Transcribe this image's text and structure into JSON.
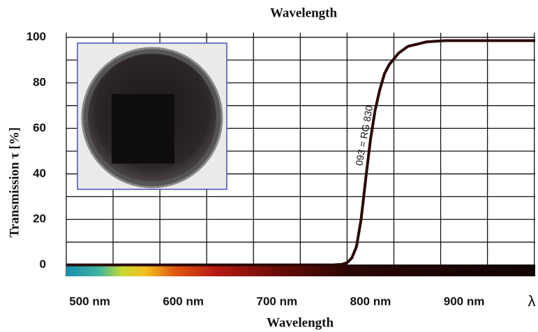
{
  "chart_data": {
    "type": "line",
    "title": "Wavelength",
    "x_label": "Wavelength",
    "y_label": "Transmission  τ [%]",
    "x_axis_symbol": "λ",
    "annotation": "093 = RG 830",
    "xlim": [
      475,
      976
    ],
    "ylim": [
      -5,
      102
    ],
    "xticks": [
      {
        "value": 500,
        "label": "500 nm"
      },
      {
        "value": 600,
        "label": "600 nm"
      },
      {
        "value": 700,
        "label": "700 nm"
      },
      {
        "value": 800,
        "label": "800 nm"
      },
      {
        "value": 900,
        "label": "900 nm"
      }
    ],
    "yticks": [
      0,
      20,
      40,
      60,
      80,
      100
    ],
    "x_grid": [
      475,
      525,
      575,
      625,
      675,
      725,
      775,
      825,
      875,
      925,
      975
    ],
    "y_grid": [
      0,
      10,
      20,
      30,
      40,
      50,
      60,
      70,
      80,
      90,
      100
    ],
    "series": [
      {
        "name": "093 = RG 830",
        "color": "#2a0805",
        "x": [
          475,
          600,
          700,
          760,
          770,
          775,
          780,
          785,
          790,
          795,
          800,
          805,
          810,
          815,
          820,
          830,
          840,
          850,
          860,
          880,
          976
        ],
        "values": [
          0,
          0,
          0,
          0,
          0.3,
          1,
          3,
          8,
          20,
          38,
          55,
          68,
          77,
          84,
          88,
          93,
          96,
          97,
          98,
          98.5,
          98.5
        ]
      }
    ]
  }
}
